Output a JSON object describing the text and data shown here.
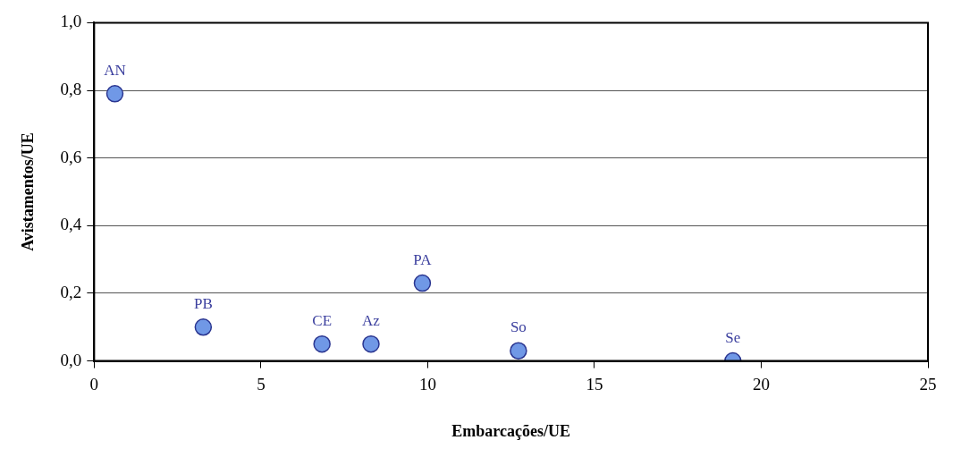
{
  "chart_data": {
    "type": "scatter",
    "xlabel": "Embarcações/UE",
    "ylabel": "Avistamentos/UE",
    "x": [
      0.62,
      3.27,
      6.83,
      8.3,
      9.84,
      12.72,
      19.15
    ],
    "series": [
      {
        "color": "#7098e6",
        "values": [
          0.79,
          0.1,
          0.05,
          0.05,
          0.23,
          0.03,
          0.0
        ]
      }
    ],
    "annotations": [
      {
        "text": "AN",
        "x": 0.62,
        "y": 0.79
      },
      {
        "text": "PB",
        "x": 3.27,
        "y": 0.1
      },
      {
        "text": "CE",
        "x": 6.83,
        "y": 0.05
      },
      {
        "text": "Az",
        "x": 8.3,
        "y": 0.05
      },
      {
        "text": "PA",
        "x": 9.84,
        "y": 0.23
      },
      {
        "text": "So",
        "x": 12.72,
        "y": 0.03
      },
      {
        "text": "Se",
        "x": 19.15,
        "y": 0.0
      }
    ],
    "xlim": [
      0,
      25
    ],
    "xticks": [
      0,
      5,
      10,
      15,
      20,
      25
    ],
    "ylim": [
      0,
      1
    ],
    "yticks": [
      {
        "value": 0,
        "label": "0,0"
      },
      {
        "value": 0.2,
        "label": "0,2"
      },
      {
        "value": 0.4,
        "label": "0,4"
      },
      {
        "value": 0.6,
        "label": "0,6"
      },
      {
        "value": 0.8,
        "label": "0,8"
      },
      {
        "value": 1,
        "label": "1,0"
      }
    ],
    "grid": "y",
    "marker": "circle"
  }
}
